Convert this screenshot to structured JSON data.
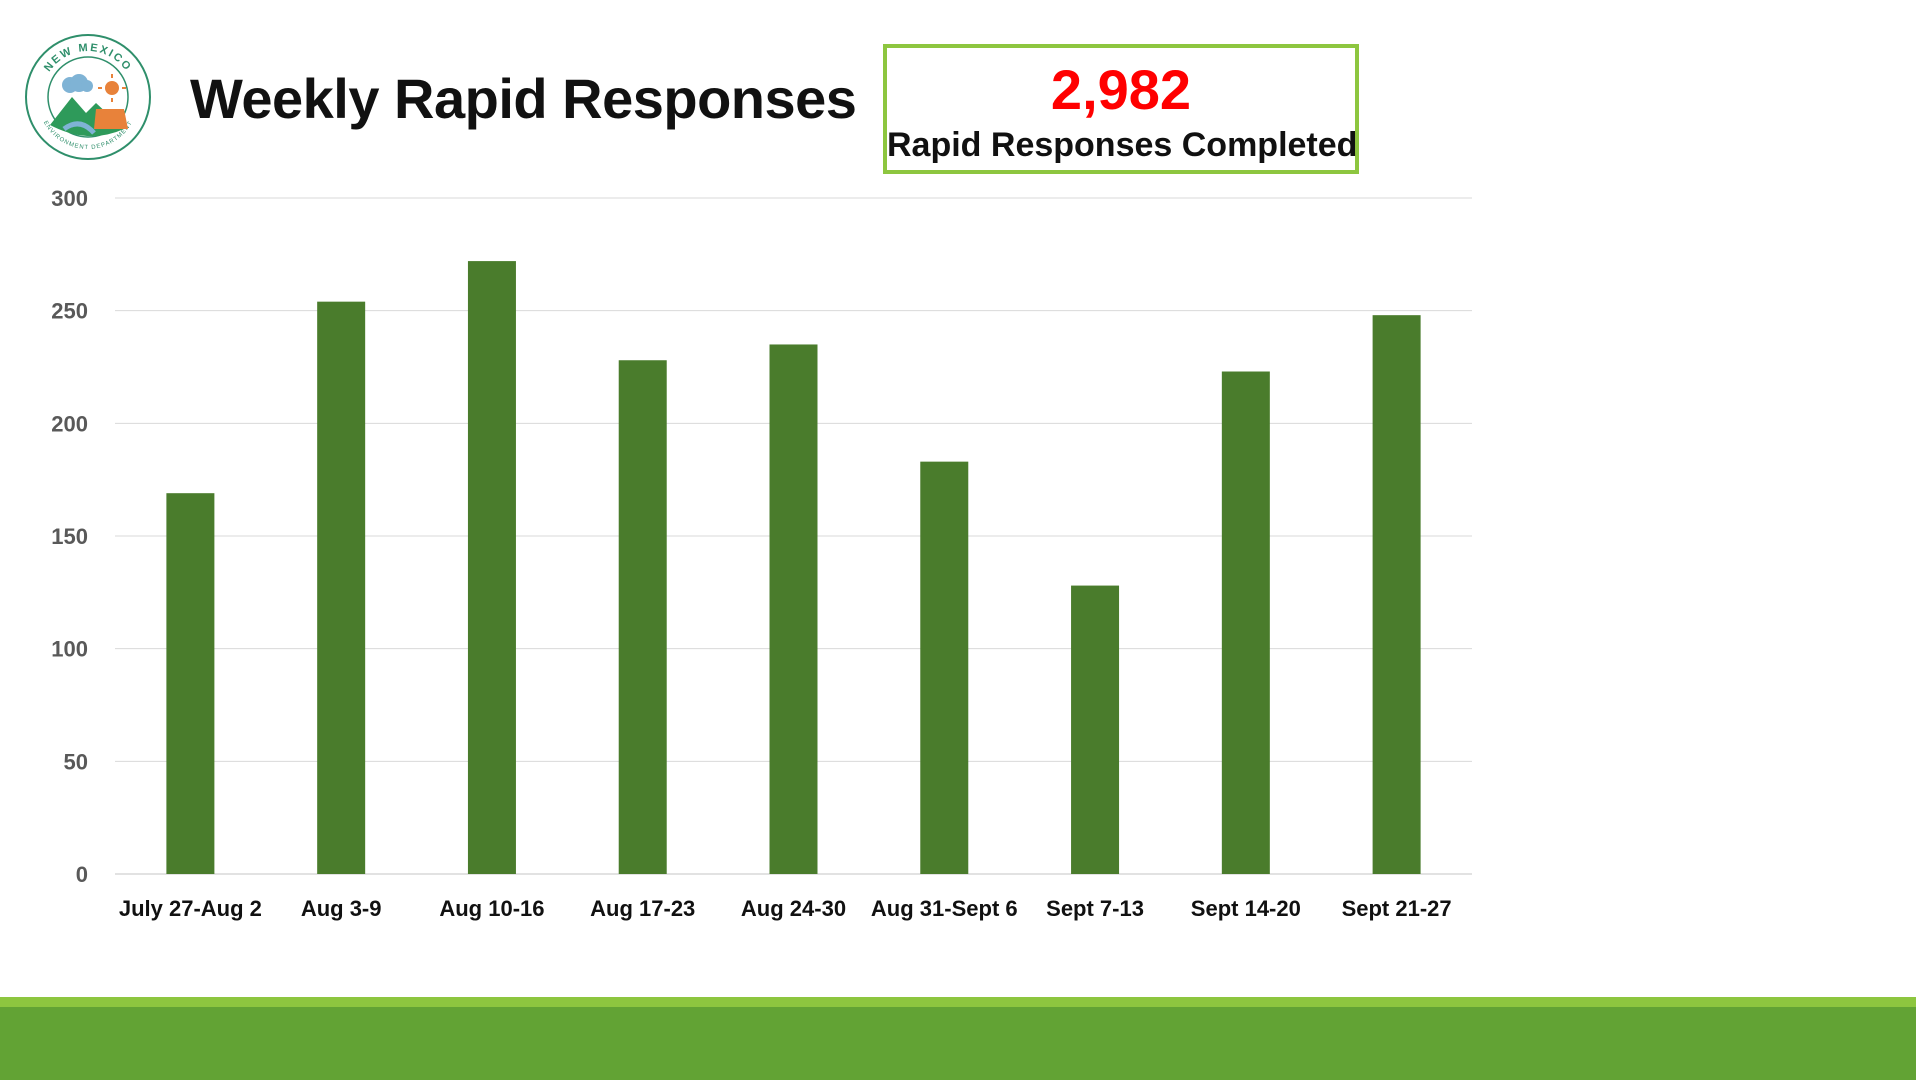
{
  "header": {
    "title": "Weekly Rapid Responses",
    "logo_icon": "new-mexico-environment-department-seal",
    "logo_text": "NEW MEXICO ENVIRONMENT DEPARTMENT"
  },
  "stat": {
    "value": "2,982",
    "label": "Rapid Responses Completed",
    "value_color": "#ff0000",
    "border_color": "#8dc63f"
  },
  "colors": {
    "bar": "#4a7c2c",
    "footer_band": "#62a334",
    "footer_line": "#8dc63f",
    "grid": "#d9d9d9"
  },
  "chart_data": {
    "type": "bar",
    "title": "",
    "xlabel": "",
    "ylabel": "",
    "ylim": [
      0,
      300
    ],
    "yticks": [
      0,
      50,
      100,
      150,
      200,
      250,
      300
    ],
    "grid": true,
    "categories": [
      "July 27-Aug 2",
      "Aug 3-9",
      "Aug 10-16",
      "Aug 17-23",
      "Aug 24-30",
      "Aug 31-Sept 6",
      "Sept 7-13",
      "Sept 14-20",
      "Sept 21-27"
    ],
    "values": [
      169,
      254,
      272,
      228,
      235,
      183,
      128,
      223,
      248
    ]
  }
}
